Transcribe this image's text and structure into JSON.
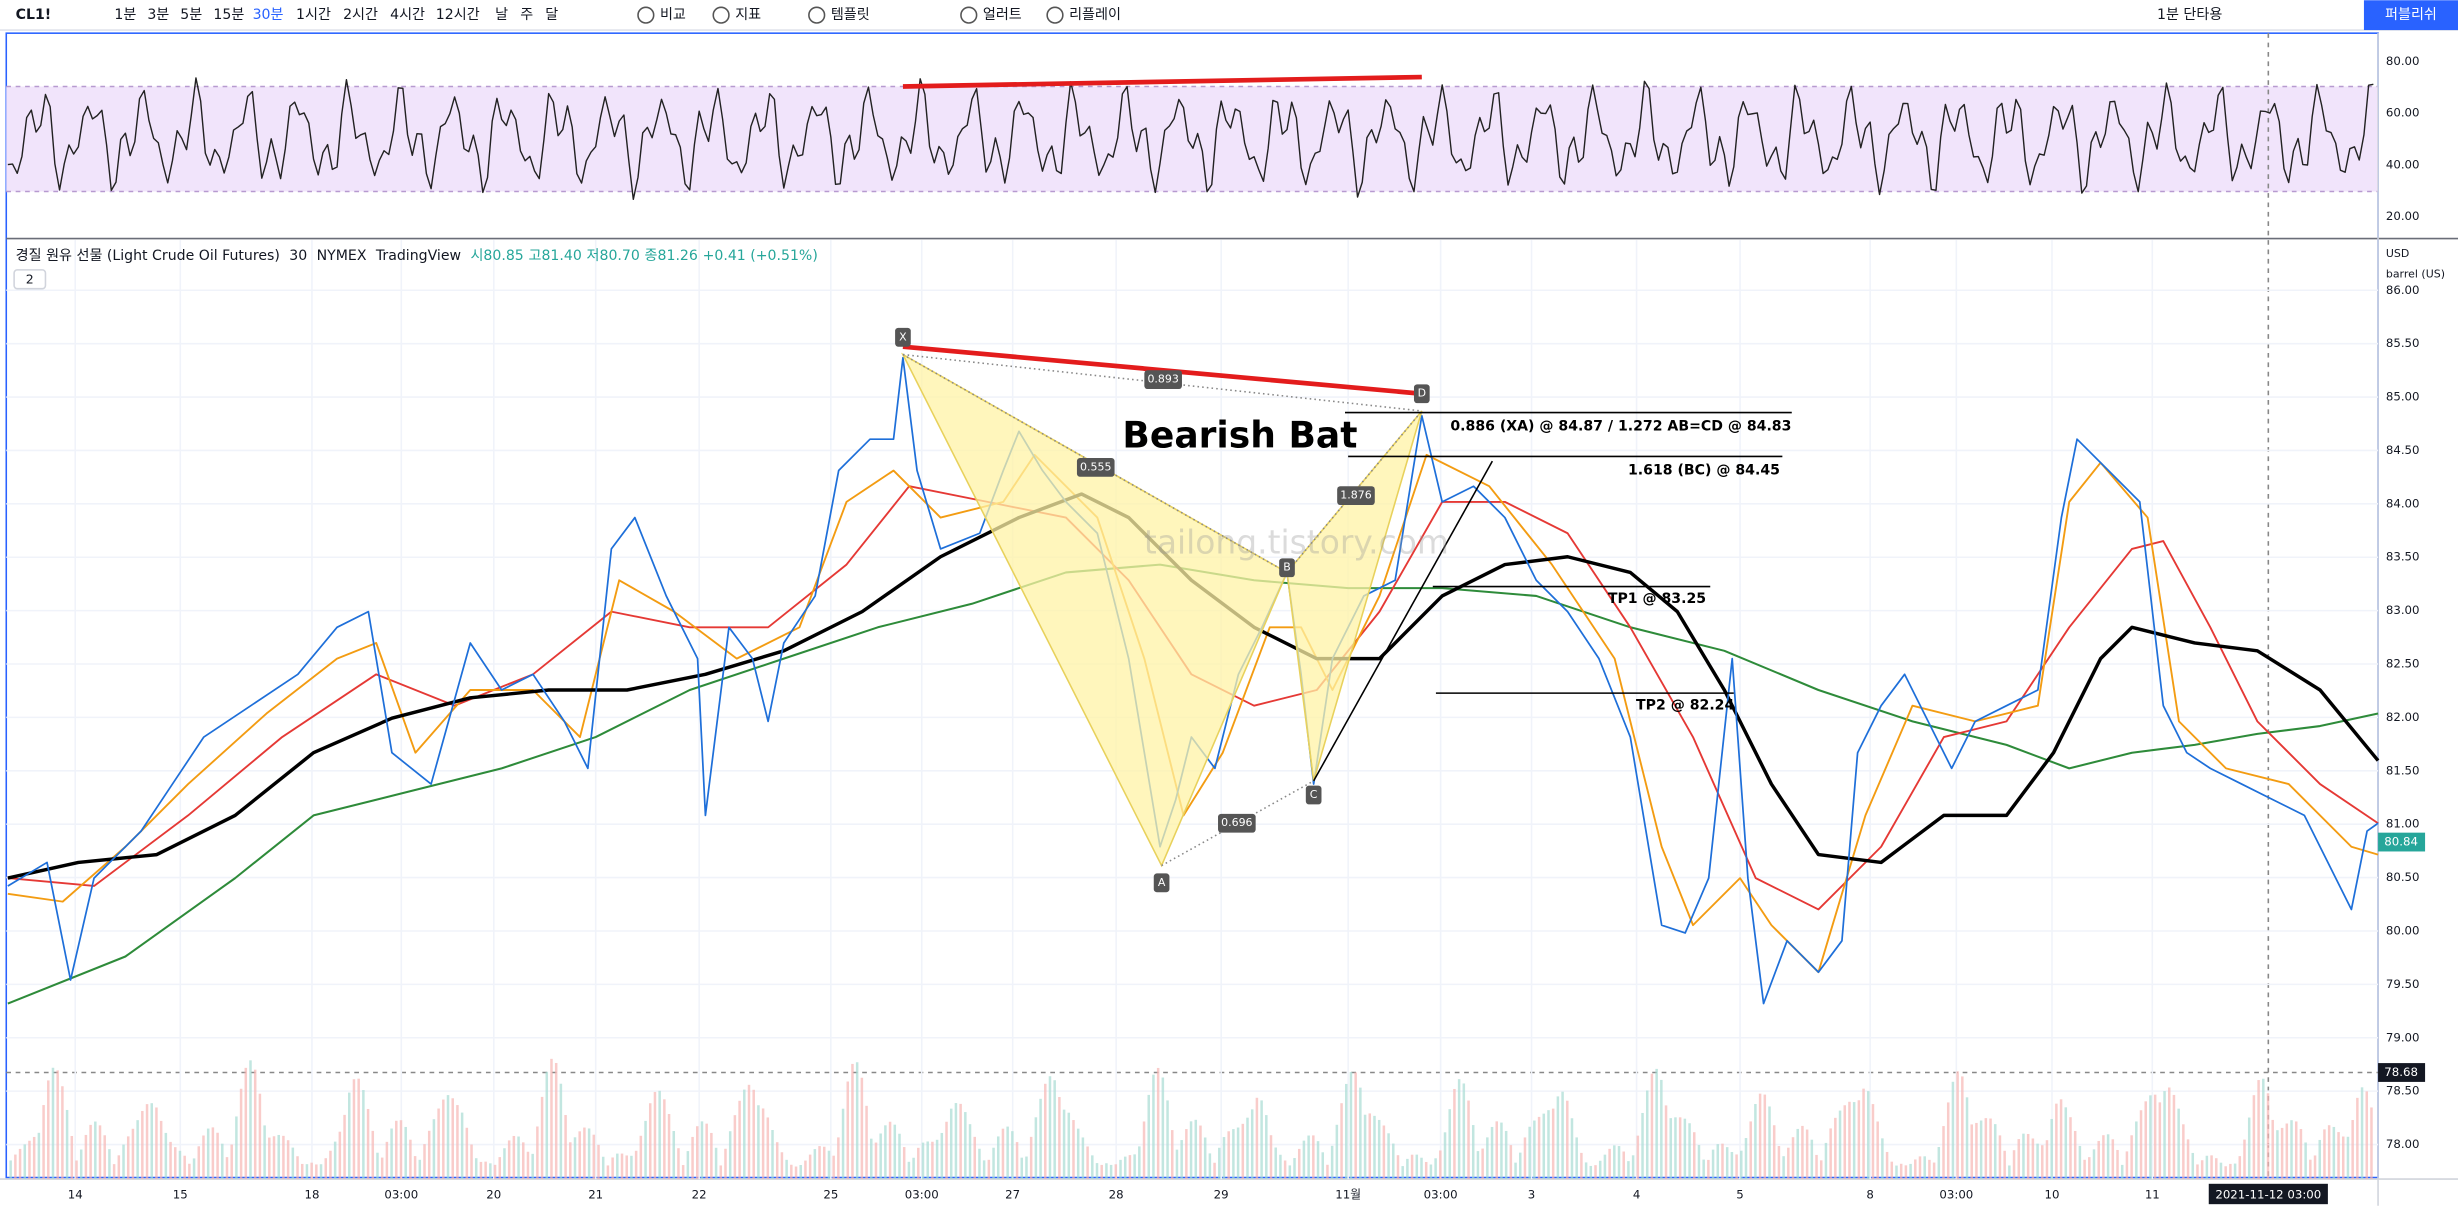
{
  "toolbar": {
    "symbol": "CL1!",
    "intervals": [
      "1분",
      "3분",
      "5분",
      "15분",
      "30분",
      "1시간",
      "2시간",
      "4시간",
      "12시간",
      "날",
      "주",
      "달"
    ],
    "buttons": [
      "비교",
      "지표",
      "템플릿",
      "얼러트",
      "리플레이"
    ],
    "layout": "1분 단타용",
    "publish": "퍼블리쉬"
  },
  "legend": {
    "title": "경질 원유 선물 (Light Crude Oil Futures)",
    "interval": "30",
    "exchange": "NYMEX",
    "source": "TradingView",
    "ohlc": [
      "시80.85",
      "고81.40",
      "저80.70",
      "종81.26",
      "+0.41 (+0.51%)"
    ],
    "collapsed": "2"
  },
  "rsi_axis": [
    "80.00",
    "60.00",
    "40.00",
    "20.00"
  ],
  "price_axis": [
    "86.00",
    "85.50",
    "85.00",
    "84.50",
    "84.00",
    "83.50",
    "83.00",
    "82.50",
    "82.00",
    "81.50",
    "81.00",
    "80.50",
    "80.00",
    "79.50",
    "79.00",
    "78.50",
    "78.00"
  ],
  "currency": "USD",
  "unit": "barrel (US)",
  "price_tags": {
    "last": "80.84",
    "cursor": "78.68"
  },
  "time_axis": [
    "14",
    "15",
    "18",
    "03:00",
    "20",
    "21",
    "22",
    "25",
    "03:00",
    "27",
    "28",
    "29",
    "11월",
    "03:00",
    "3",
    "4",
    "5",
    "8",
    "03:00",
    "10",
    "11"
  ],
  "time_cursor": "2021-11-12  03:00",
  "pattern": {
    "title": "Bearish Bat",
    "points": [
      "X",
      "A",
      "B",
      "C",
      "D"
    ],
    "ratios": [
      "0.893",
      "0.555",
      "0.696",
      "1.876"
    ],
    "targets": [
      "0.886 (XA) @ 84.87 / 1.272 AB=CD @ 84.83",
      "1.618 (BC) @ 84.45",
      "TP1 @ 83.25",
      "TP2 @ 82.24"
    ]
  },
  "watermark": "tailong.tistory.com"
}
